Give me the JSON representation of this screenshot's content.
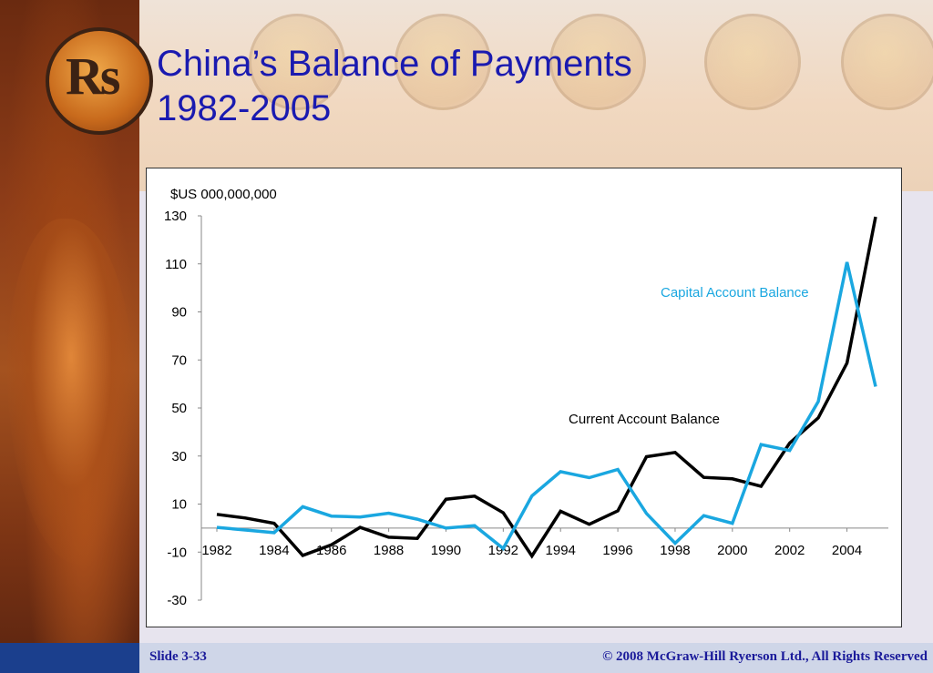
{
  "slide": {
    "title_line1": "China’s Balance of Payments",
    "title_line2": "1982-2005",
    "logo_text": "Rs",
    "slide_number": "Slide 3-33",
    "copyright": "© 2008 McGraw-Hill Ryerson Ltd., All Rights Reserved"
  },
  "colors": {
    "title": "#1a1ab0",
    "current_account": "#000000",
    "capital_account": "#1aa7e0"
  },
  "chart_data": {
    "type": "line",
    "unit_label": "$US 000,000,000",
    "ylim": [
      -30,
      130
    ],
    "yticks": [
      -30,
      -10,
      10,
      30,
      50,
      70,
      90,
      110,
      130
    ],
    "xticks": [
      1982,
      1984,
      1986,
      1988,
      1990,
      1992,
      1994,
      1996,
      1998,
      2000,
      2002,
      2004
    ],
    "grid": false,
    "series": [
      {
        "name": "Current Account Balance",
        "color": "#000000",
        "x": [
          1982,
          1983,
          1984,
          1985,
          1986,
          1987,
          1988,
          1989,
          1990,
          1991,
          1992,
          1993,
          1994,
          1995,
          1996,
          1997,
          1998,
          1999,
          2000,
          2001,
          2002,
          2003,
          2004,
          2005
        ],
        "values": [
          5.7,
          4.2,
          2.0,
          -11.4,
          -7.0,
          0.3,
          -3.8,
          -4.3,
          12.0,
          13.3,
          6.4,
          -11.6,
          7.0,
          1.6,
          7.2,
          29.7,
          31.5,
          21.1,
          20.5,
          17.4,
          35.4,
          45.9,
          68.7,
          129.6
        ]
      },
      {
        "name": "Capital Account Balance",
        "color": "#1aa7e0",
        "x": [
          1982,
          1983,
          1984,
          1985,
          1986,
          1987,
          1988,
          1989,
          1990,
          1991,
          1992,
          1993,
          1994,
          1995,
          1996,
          1997,
          1998,
          1999,
          2000,
          2001,
          2002,
          2003,
          2004,
          2005
        ],
        "values": [
          0.3,
          -0.8,
          -1.9,
          8.9,
          5.0,
          4.6,
          6.2,
          3.7,
          0.0,
          1.0,
          -8.5,
          13.4,
          23.5,
          21.0,
          24.4,
          6.1,
          -6.3,
          5.2,
          2.0,
          34.8,
          32.3,
          52.7,
          110.7,
          58.9
        ]
      }
    ]
  }
}
